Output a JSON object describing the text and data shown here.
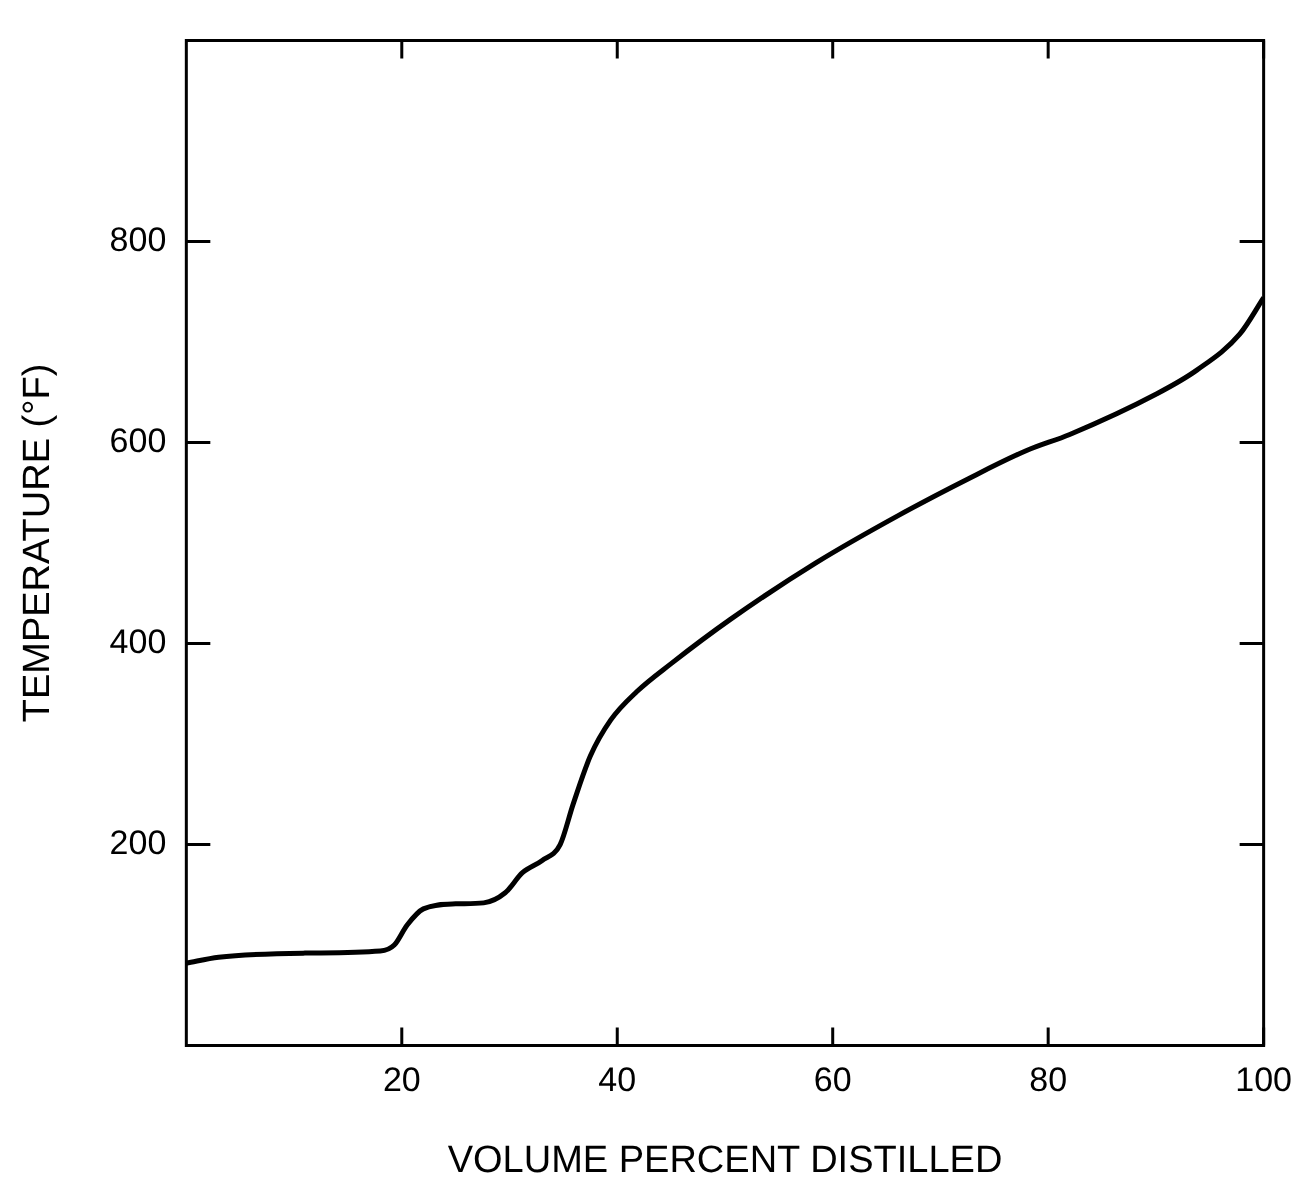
{
  "chart_data": {
    "type": "line",
    "xlabel": "VOLUME PERCENT DISTILLED",
    "ylabel": "TEMPERATURE (°F)",
    "xlim": [
      0,
      100
    ],
    "xticks": [
      20,
      40,
      60,
      80,
      100
    ],
    "ylim": [
      0,
      1000
    ],
    "yticks": [
      200,
      400,
      600,
      800
    ],
    "grid": false,
    "legend": false,
    "marker": "none",
    "line_style": "solid",
    "series": [
      {
        "color": "#000000",
        "x": [
          0,
          3,
          11,
          18,
          19.3,
          20.5,
          22,
          25,
          27.6,
          29.6,
          31.2,
          33,
          34.7,
          35.9,
          37.5,
          39.4,
          41.8,
          45,
          50.5,
          58.4,
          66.2,
          72.6,
          78,
          82,
          90,
          93.8,
          97.8,
          100
        ],
        "values": [
          82,
          88,
          92,
          94,
          100,
          120,
          136,
          141,
          142,
          152,
          172,
          184,
          200,
          240,
          288,
          324,
          352,
          380,
          424,
          480,
          528,
          564,
          592,
          608,
          648,
          672,
          708,
          744
        ]
      }
    ]
  }
}
